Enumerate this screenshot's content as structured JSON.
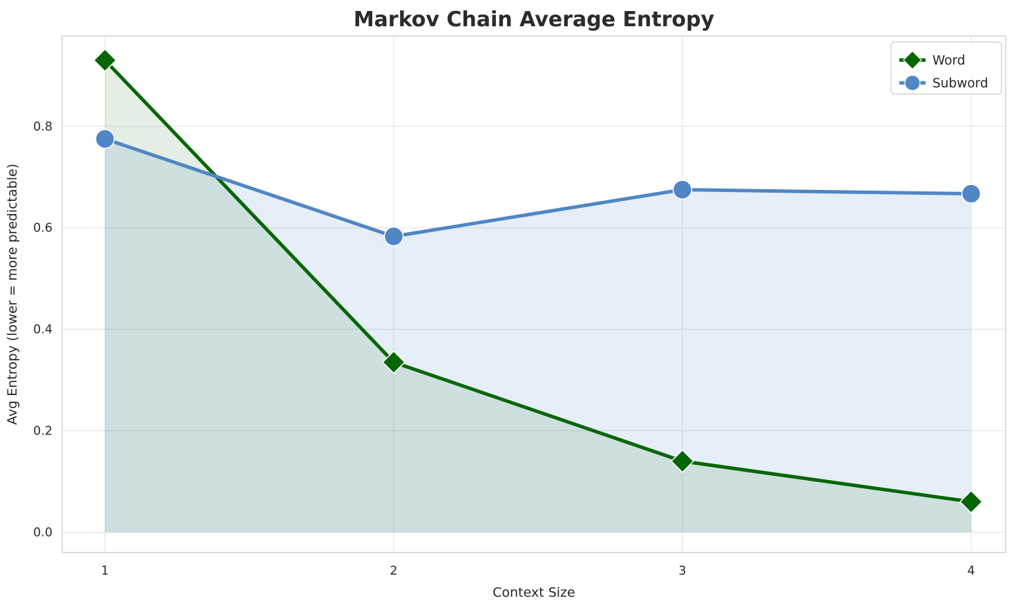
{
  "figure": {
    "background": "#ffffff",
    "plot_background": "#ffffff",
    "grid_color": "#e7e7e7",
    "border_color": "#cccccc",
    "text_color": "#262626"
  },
  "chart_data": {
    "type": "line",
    "title": "Markov Chain Average Entropy",
    "xlabel": "Context Size",
    "ylabel": "Avg Entropy (lower = more predictable)",
    "x": [
      1,
      2,
      3,
      4
    ],
    "x_tick_labels": [
      "1",
      "2",
      "3",
      "4"
    ],
    "y_ticks": [
      0.0,
      0.2,
      0.4,
      0.6,
      0.8
    ],
    "y_tick_labels": [
      "0.0",
      "0.2",
      "0.4",
      "0.6",
      "0.8"
    ],
    "ylim": [
      -0.04,
      0.978
    ],
    "grid": true,
    "legend_position": "upper right",
    "fill_under_curves": true,
    "series": [
      {
        "name": "Word",
        "marker": "diamond",
        "color": "#066606",
        "fill_opacity": 0.11,
        "values": [
          0.93,
          0.335,
          0.14,
          0.06
        ]
      },
      {
        "name": "Subword",
        "marker": "circle",
        "color": "#4f86c5",
        "fill_opacity": 0.14,
        "values": [
          0.775,
          0.583,
          0.675,
          0.667
        ]
      }
    ]
  }
}
